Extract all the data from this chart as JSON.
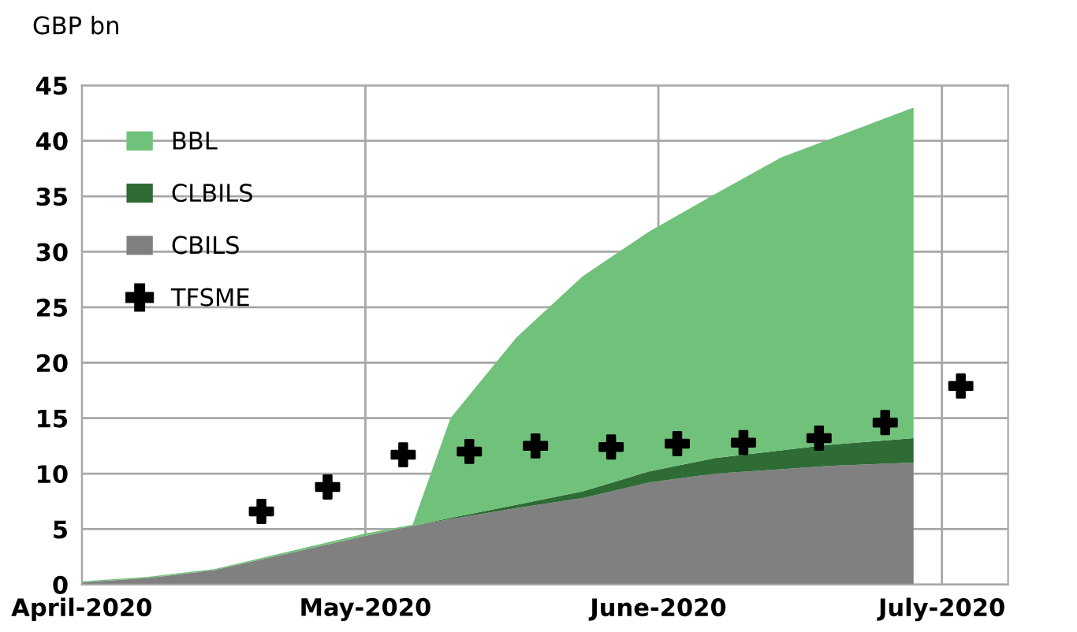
{
  "chart_data": {
    "type": "area",
    "ylabel": "GBP bn",
    "stacked": true,
    "x": [
      "2020-04-01",
      "2020-04-08",
      "2020-04-15",
      "2020-05-01",
      "2020-05-06",
      "2020-05-10",
      "2020-05-17",
      "2020-05-24",
      "2020-05-31",
      "2020-06-07",
      "2020-06-14",
      "2020-06-19",
      "2020-06-28"
    ],
    "series": [
      {
        "name": "CBILS",
        "color": "#808080",
        "values": [
          0.2,
          0.6,
          1.3,
          4.4,
          5.3,
          5.9,
          6.9,
          7.8,
          9.2,
          10.0,
          10.4,
          10.7,
          11.0
        ]
      },
      {
        "name": "CLBILS",
        "color": "#2e6b35",
        "values": [
          0,
          0,
          0,
          0,
          0,
          0.1,
          0.3,
          0.6,
          1.0,
          1.4,
          1.7,
          1.9,
          2.2
        ]
      },
      {
        "name": "BBL",
        "color": "#70c27a",
        "values": [
          0.1,
          0.1,
          0.1,
          0.2,
          0.1,
          9.0,
          15.1,
          19.4,
          21.6,
          23.8,
          26.4,
          27.5,
          29.8
        ]
      },
      {
        "name": "TFSME",
        "type": "scatter",
        "color": "#000000",
        "marker": "cross",
        "x": [
          "2020-04-20",
          "2020-04-27",
          "2020-05-05",
          "2020-05-12",
          "2020-05-19",
          "2020-05-27",
          "2020-06-03",
          "2020-06-10",
          "2020-06-18",
          "2020-06-25",
          "2020-07-03"
        ],
        "values": [
          6.6,
          8.8,
          11.7,
          12.0,
          12.5,
          12.4,
          12.7,
          12.8,
          13.2,
          14.6,
          17.9
        ]
      }
    ],
    "xlim": [
      "2020-04-01",
      "2020-07-08"
    ],
    "xticks": [
      {
        "value": "2020-04-01",
        "label": "April-2020"
      },
      {
        "value": "2020-05-01",
        "label": "May-2020"
      },
      {
        "value": "2020-06-01",
        "label": "June-2020"
      },
      {
        "value": "2020-07-01",
        "label": "July-2020"
      }
    ],
    "ylim": [
      0,
      45
    ],
    "yticks": [
      0,
      5,
      10,
      15,
      20,
      25,
      30,
      35,
      40,
      45
    ],
    "grid": true,
    "legend": "top left"
  }
}
